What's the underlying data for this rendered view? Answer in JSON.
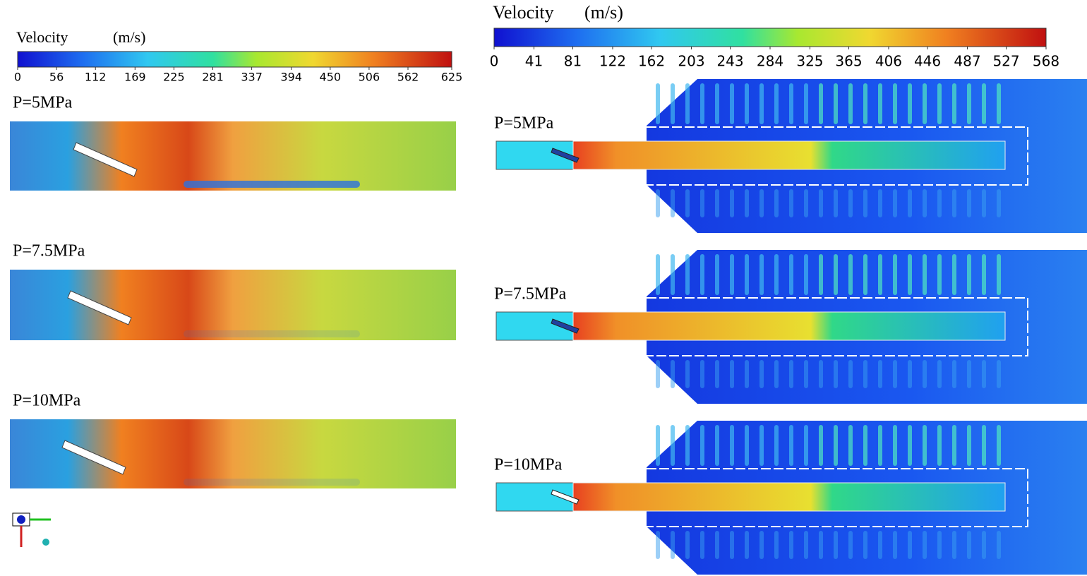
{
  "left": {
    "colorbar": {
      "title": "Velocity",
      "unit": "(m/s)",
      "lim": [
        0,
        625
      ],
      "ticks": [
        0,
        56,
        112,
        169,
        225,
        281,
        337,
        394,
        450,
        506,
        562,
        625
      ]
    },
    "panels": [
      {
        "label": "P=5MPa"
      },
      {
        "label": "P=7.5MPa"
      },
      {
        "label": "P=10MPa"
      }
    ]
  },
  "right": {
    "colorbar": {
      "title": "Velocity",
      "unit": "(m/s)",
      "lim": [
        0,
        568
      ],
      "ticks": [
        0,
        41,
        81,
        122,
        162,
        203,
        243,
        284,
        325,
        365,
        406,
        446,
        487,
        527,
        568
      ]
    },
    "panels": [
      {
        "label": "P=5MPa"
      },
      {
        "label": "P=7.5MPa"
      },
      {
        "label": "P=10MPa"
      }
    ]
  }
}
